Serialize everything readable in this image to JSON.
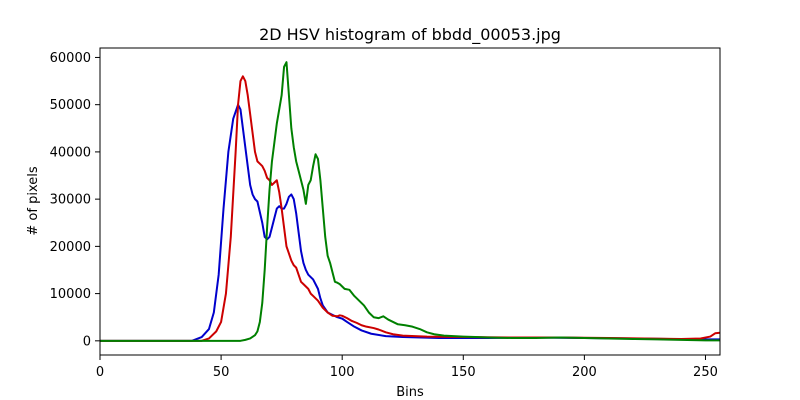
{
  "chart_data": {
    "type": "line",
    "title": "2D HSV histogram of bbdd_00053.jpg",
    "xlabel": "Bins",
    "ylabel": "# of pixels",
    "xlim": [
      0,
      256
    ],
    "ylim": [
      -3000,
      62000
    ],
    "xticks": [
      0,
      50,
      100,
      150,
      200,
      250
    ],
    "yticks": [
      0,
      10000,
      20000,
      30000,
      40000,
      50000,
      60000
    ],
    "xtick_labels": [
      "0",
      "50",
      "100",
      "150",
      "200",
      "250"
    ],
    "ytick_labels": [
      "0",
      "10000",
      "20000",
      "30000",
      "40000",
      "50000",
      "60000"
    ],
    "grid": false,
    "legend": "none",
    "series": [
      {
        "color": "#0000cc",
        "points": [
          [
            0,
            0
          ],
          [
            38,
            0
          ],
          [
            42,
            800
          ],
          [
            45,
            2500
          ],
          [
            47,
            6000
          ],
          [
            49,
            14000
          ],
          [
            51,
            28000
          ],
          [
            53,
            40000
          ],
          [
            55,
            47000
          ],
          [
            57,
            50000
          ],
          [
            58,
            49000
          ],
          [
            59,
            45000
          ],
          [
            61,
            37000
          ],
          [
            62,
            33000
          ],
          [
            63,
            31000
          ],
          [
            64,
            30000
          ],
          [
            65,
            29500
          ],
          [
            67,
            25000
          ],
          [
            68,
            22000
          ],
          [
            69,
            21500
          ],
          [
            70,
            22000
          ],
          [
            71,
            24000
          ],
          [
            72,
            26000
          ],
          [
            73,
            28000
          ],
          [
            74,
            28500
          ],
          [
            75,
            28000
          ],
          [
            76,
            28000
          ],
          [
            77,
            29000
          ],
          [
            78,
            30500
          ],
          [
            79,
            31000
          ],
          [
            80,
            30000
          ],
          [
            81,
            27000
          ],
          [
            82,
            23000
          ],
          [
            83,
            19000
          ],
          [
            84,
            16500
          ],
          [
            85,
            15000
          ],
          [
            86,
            14000
          ],
          [
            87,
            13500
          ],
          [
            88,
            13000
          ],
          [
            90,
            11000
          ],
          [
            91,
            9000
          ],
          [
            92,
            7500
          ],
          [
            94,
            6000
          ],
          [
            96,
            5500
          ],
          [
            98,
            5000
          ],
          [
            100,
            4700
          ],
          [
            102,
            4000
          ],
          [
            105,
            3000
          ],
          [
            108,
            2200
          ],
          [
            112,
            1500
          ],
          [
            118,
            1000
          ],
          [
            125,
            800
          ],
          [
            140,
            600
          ],
          [
            160,
            600
          ],
          [
            180,
            700
          ],
          [
            200,
            600
          ],
          [
            220,
            500
          ],
          [
            235,
            400
          ],
          [
            245,
            300
          ],
          [
            252,
            300
          ],
          [
            256,
            300
          ]
        ]
      },
      {
        "color": "#cc0000",
        "points": [
          [
            0,
            0
          ],
          [
            42,
            0
          ],
          [
            45,
            500
          ],
          [
            48,
            2000
          ],
          [
            50,
            4000
          ],
          [
            52,
            10000
          ],
          [
            54,
            22000
          ],
          [
            56,
            40000
          ],
          [
            57,
            50000
          ],
          [
            58,
            55000
          ],
          [
            59,
            56000
          ],
          [
            60,
            55000
          ],
          [
            61,
            52000
          ],
          [
            62,
            48000
          ],
          [
            63,
            44000
          ],
          [
            64,
            40000
          ],
          [
            65,
            38000
          ],
          [
            66,
            37500
          ],
          [
            67,
            37000
          ],
          [
            68,
            36000
          ],
          [
            69,
            34500
          ],
          [
            70,
            34000
          ],
          [
            71,
            33000
          ],
          [
            72,
            33500
          ],
          [
            73,
            34000
          ],
          [
            74,
            31500
          ],
          [
            75,
            28000
          ],
          [
            76,
            24000
          ],
          [
            77,
            20000
          ],
          [
            78,
            18500
          ],
          [
            79,
            17000
          ],
          [
            80,
            16000
          ],
          [
            81,
            15500
          ],
          [
            82,
            14000
          ],
          [
            83,
            12500
          ],
          [
            84,
            12000
          ],
          [
            85,
            11500
          ],
          [
            86,
            11000
          ],
          [
            87,
            10000
          ],
          [
            88,
            9500
          ],
          [
            89,
            9000
          ],
          [
            90,
            8500
          ],
          [
            92,
            7000
          ],
          [
            94,
            6000
          ],
          [
            96,
            5300
          ],
          [
            98,
            5200
          ],
          [
            99,
            5400
          ],
          [
            100,
            5300
          ],
          [
            102,
            4800
          ],
          [
            104,
            4200
          ],
          [
            106,
            3800
          ],
          [
            108,
            3300
          ],
          [
            110,
            3000
          ],
          [
            113,
            2700
          ],
          [
            115,
            2400
          ],
          [
            118,
            1800
          ],
          [
            121,
            1400
          ],
          [
            125,
            1100
          ],
          [
            135,
            900
          ],
          [
            150,
            800
          ],
          [
            170,
            700
          ],
          [
            190,
            700
          ],
          [
            210,
            600
          ],
          [
            225,
            500
          ],
          [
            240,
            400
          ],
          [
            248,
            500
          ],
          [
            252,
            900
          ],
          [
            254,
            1600
          ],
          [
            256,
            1700
          ]
        ]
      },
      {
        "color": "#008000",
        "points": [
          [
            0,
            0
          ],
          [
            58,
            0
          ],
          [
            60,
            200
          ],
          [
            62,
            500
          ],
          [
            64,
            1200
          ],
          [
            65,
            2000
          ],
          [
            66,
            4000
          ],
          [
            67,
            8000
          ],
          [
            68,
            15000
          ],
          [
            69,
            24000
          ],
          [
            70,
            32000
          ],
          [
            71,
            38000
          ],
          [
            72,
            42000
          ],
          [
            73,
            46000
          ],
          [
            74,
            49000
          ],
          [
            75,
            52000
          ],
          [
            76,
            58000
          ],
          [
            77,
            59000
          ],
          [
            78,
            52000
          ],
          [
            79,
            45000
          ],
          [
            80,
            41000
          ],
          [
            81,
            38000
          ],
          [
            82,
            36000
          ],
          [
            83,
            34000
          ],
          [
            84,
            32000
          ],
          [
            85,
            29000
          ],
          [
            86,
            33000
          ],
          [
            87,
            34000
          ],
          [
            88,
            37000
          ],
          [
            89,
            39500
          ],
          [
            90,
            38500
          ],
          [
            91,
            34000
          ],
          [
            92,
            28000
          ],
          [
            93,
            22000
          ],
          [
            94,
            18000
          ],
          [
            95,
            16500
          ],
          [
            96,
            14500
          ],
          [
            97,
            12500
          ],
          [
            98,
            12300
          ],
          [
            99,
            12000
          ],
          [
            100,
            11500
          ],
          [
            101,
            11000
          ],
          [
            103,
            10800
          ],
          [
            105,
            9500
          ],
          [
            107,
            8500
          ],
          [
            109,
            7500
          ],
          [
            111,
            6000
          ],
          [
            113,
            5000
          ],
          [
            115,
            4800
          ],
          [
            117,
            5200
          ],
          [
            119,
            4500
          ],
          [
            121,
            4000
          ],
          [
            123,
            3500
          ],
          [
            126,
            3300
          ],
          [
            129,
            3000
          ],
          [
            132,
            2500
          ],
          [
            135,
            1800
          ],
          [
            138,
            1400
          ],
          [
            142,
            1100
          ],
          [
            146,
            1000
          ],
          [
            150,
            900
          ],
          [
            155,
            800
          ],
          [
            160,
            700
          ],
          [
            170,
            600
          ],
          [
            180,
            600
          ],
          [
            190,
            700
          ],
          [
            200,
            600
          ],
          [
            210,
            500
          ],
          [
            220,
            400
          ],
          [
            230,
            300
          ],
          [
            240,
            200
          ],
          [
            250,
            100
          ],
          [
            256,
            100
          ]
        ]
      }
    ]
  }
}
